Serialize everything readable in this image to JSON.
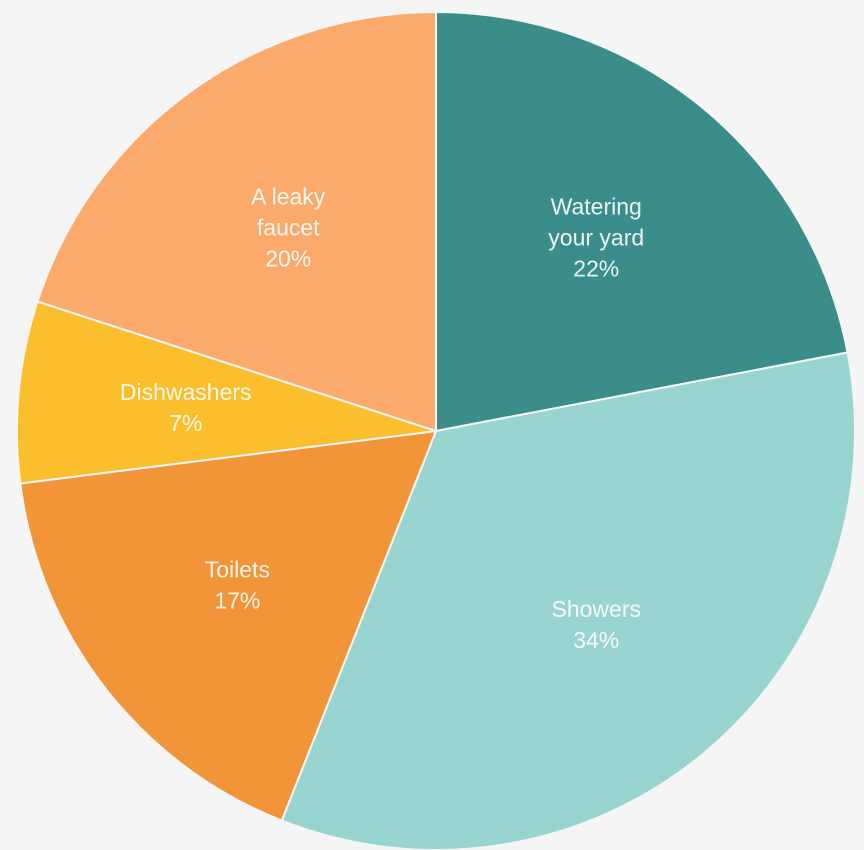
{
  "chart_data": {
    "type": "pie",
    "title": "",
    "start_angle_deg": 0,
    "direction": "clockwise",
    "legend": "none",
    "slices": [
      {
        "label_lines": [
          "Watering",
          "your yard"
        ],
        "percent_label": "22%",
        "value": 22,
        "color": "#3a8d88"
      },
      {
        "label_lines": [
          "Showers"
        ],
        "percent_label": "34%",
        "value": 34,
        "color": "#98d5d1"
      },
      {
        "label_lines": [
          "Toilets"
        ],
        "percent_label": "17%",
        "value": 17,
        "color": "#f29438"
      },
      {
        "label_lines": [
          "Dishwashers"
        ],
        "percent_label": "7%",
        "value": 7,
        "color": "#fbbe2c"
      },
      {
        "label_lines": [
          "A leaky",
          "faucet"
        ],
        "percent_label": "20%",
        "value": 20,
        "color": "#fcaa6c"
      }
    ]
  }
}
